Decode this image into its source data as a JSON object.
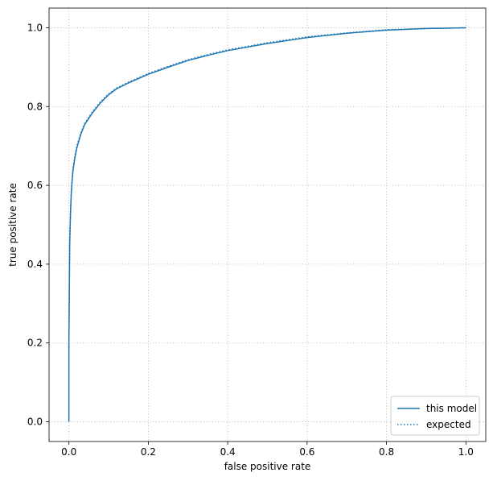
{
  "chart_data": {
    "type": "line",
    "title": "",
    "xlabel": "false positive rate",
    "ylabel": "true positive rate",
    "xlim": [
      -0.05,
      1.05
    ],
    "ylim": [
      -0.05,
      1.05
    ],
    "xticks": [
      "0.0",
      "0.2",
      "0.4",
      "0.6",
      "0.8",
      "1.0"
    ],
    "yticks": [
      "0.0",
      "0.2",
      "0.4",
      "0.6",
      "0.8",
      "1.0"
    ],
    "grid": true,
    "legend_position": "lower-right",
    "colors": {
      "series": "#1f77b4",
      "grid": "#b0b0b0",
      "axes": "#000000"
    },
    "series": [
      {
        "name": "this model",
        "style": "solid",
        "x": [
          0.0,
          0.0,
          0.001,
          0.002,
          0.004,
          0.006,
          0.008,
          0.01,
          0.015,
          0.02,
          0.03,
          0.04,
          0.05,
          0.06,
          0.08,
          0.1,
          0.12,
          0.15,
          0.2,
          0.25,
          0.3,
          0.35,
          0.4,
          0.5,
          0.6,
          0.7,
          0.8,
          0.9,
          0.95,
          1.0
        ],
        "y": [
          0.0,
          0.2,
          0.33,
          0.45,
          0.53,
          0.58,
          0.61,
          0.635,
          0.67,
          0.695,
          0.73,
          0.755,
          0.77,
          0.785,
          0.81,
          0.83,
          0.845,
          0.86,
          0.882,
          0.9,
          0.917,
          0.93,
          0.942,
          0.96,
          0.975,
          0.986,
          0.994,
          0.998,
          0.999,
          1.0
        ]
      },
      {
        "name": "expected",
        "style": "dotted",
        "x": [
          0.0,
          0.0,
          0.001,
          0.002,
          0.004,
          0.006,
          0.008,
          0.01,
          0.015,
          0.02,
          0.03,
          0.04,
          0.05,
          0.06,
          0.08,
          0.1,
          0.12,
          0.15,
          0.2,
          0.25,
          0.3,
          0.35,
          0.4,
          0.5,
          0.6,
          0.7,
          0.8,
          0.9,
          0.95,
          1.0
        ],
        "y": [
          0.0,
          0.21,
          0.34,
          0.46,
          0.535,
          0.585,
          0.615,
          0.64,
          0.675,
          0.7,
          0.733,
          0.758,
          0.773,
          0.788,
          0.813,
          0.832,
          0.847,
          0.862,
          0.884,
          0.902,
          0.919,
          0.932,
          0.944,
          0.962,
          0.977,
          0.987,
          0.995,
          0.998,
          0.999,
          1.0
        ]
      }
    ]
  }
}
